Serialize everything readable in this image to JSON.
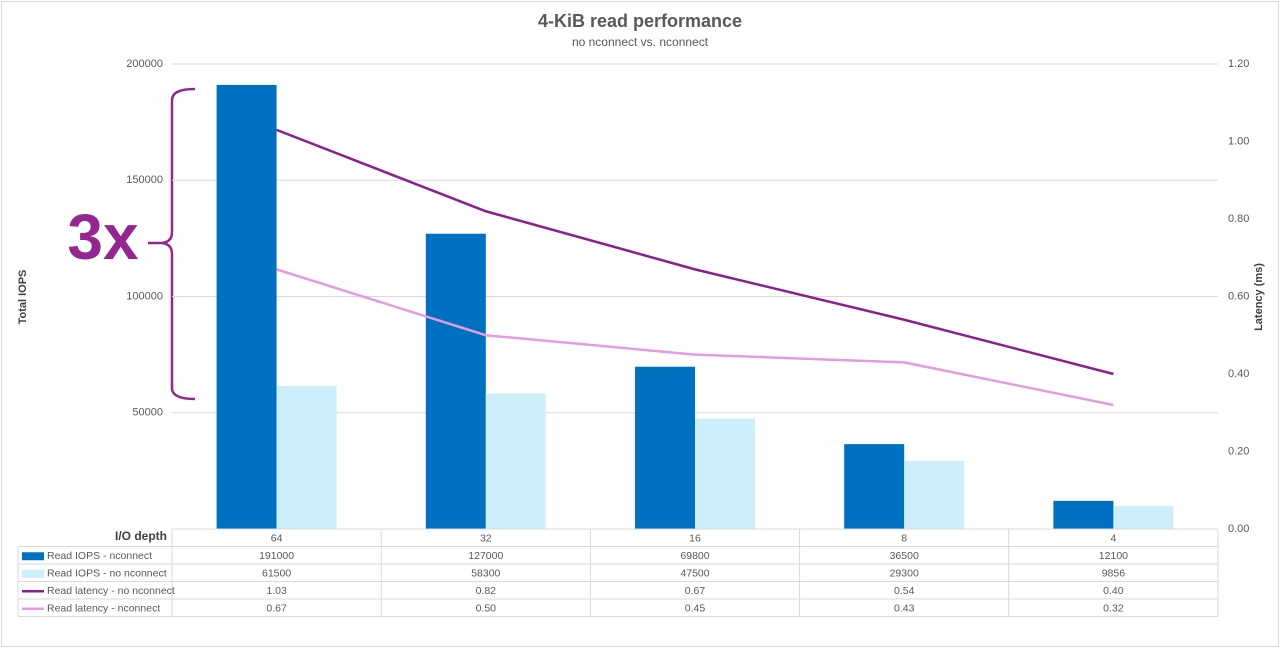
{
  "chart_data": {
    "type": "bar",
    "title": "4-KiB read performance",
    "subtitle": "no nconnect vs. nconnect",
    "x_label": "I/O depth",
    "y_label": "Total IOPS",
    "y2_label": "Latency (ms)",
    "annotation": "3x",
    "categories": [
      "64",
      "32",
      "16",
      "8",
      "4"
    ],
    "ylim": [
      0,
      200000
    ],
    "yticks": [
      50000,
      100000,
      150000,
      200000
    ],
    "y2lim": [
      0,
      1.2
    ],
    "y2ticks": [
      {
        "value": 0,
        "label": "0.00"
      },
      {
        "value": 0.2,
        "label": "0.20"
      },
      {
        "value": 0.4,
        "label": "0.40"
      },
      {
        "value": 0.6,
        "label": "0.60"
      },
      {
        "value": 0.8,
        "label": "0.80"
      },
      {
        "value": 1.0,
        "label": "1.00"
      },
      {
        "value": 1.2,
        "label": "1.20"
      }
    ],
    "grid": true,
    "series": [
      {
        "name": "Read IOPS - nconnect",
        "type": "bar",
        "color": "#0070c0",
        "values": [
          191000,
          127000,
          69800,
          36500,
          12100
        ]
      },
      {
        "name": "Read IOPS - no nconnect",
        "type": "bar",
        "color": "#cdeefb",
        "values": [
          61500,
          58300,
          47500,
          29300,
          9856
        ]
      },
      {
        "name": "Read latency - no nconnect",
        "type": "line",
        "axis": "y2",
        "color": "#8b1f8f",
        "values": [
          1.03,
          0.82,
          0.67,
          0.54,
          0.4
        ],
        "value_labels": [
          "1.03",
          "0.82",
          "0.67",
          "0.54",
          "0.40"
        ]
      },
      {
        "name": "Read latency - nconnect",
        "type": "line",
        "axis": "y2",
        "color": "#e59be0",
        "values": [
          0.67,
          0.5,
          0.45,
          0.43,
          0.32
        ],
        "value_labels": [
          "0.67",
          "0.50",
          "0.45",
          "0.43",
          "0.32"
        ]
      }
    ]
  }
}
